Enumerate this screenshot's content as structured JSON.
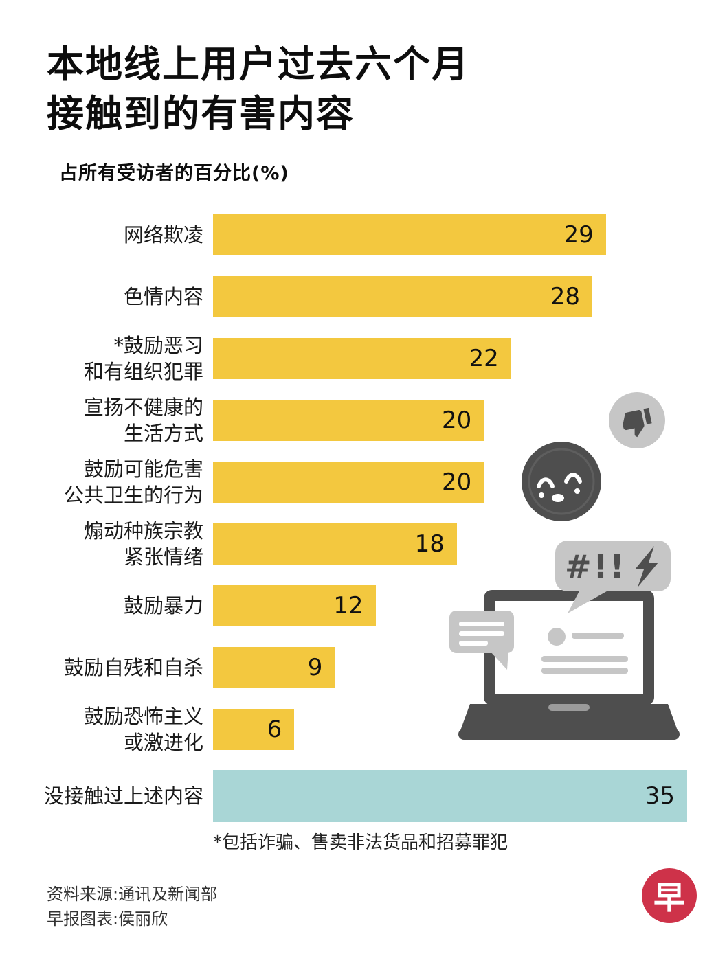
{
  "title": "本地线上用户过去六个月\n接触到的有害内容",
  "subtitle": "占所有受访者的百分比(%)",
  "chart_data": {
    "type": "bar",
    "orientation": "horizontal",
    "title": "本地线上用户过去六个月接触到的有害内容",
    "xlabel": "占所有受访者的百分比(%)",
    "ylabel": "",
    "axis_max": 35,
    "grid": false,
    "legend": false,
    "value_labels_inside_bars": true,
    "bar_color": "#F3C83F",
    "highlight_color": "#A9D6D6",
    "highlight_index": 9,
    "categories": [
      "网络欺凌",
      "色情内容",
      "*鼓励恶习\n和有组织犯罪",
      "宣扬不健康的\n生活方式",
      "鼓励可能危害\n公共卫生的行为",
      "煽动种族宗教\n紧张情绪",
      "鼓励暴力",
      "鼓励自残和自杀",
      "鼓励恐怖主义\n或激进化",
      "没接触过上述内容"
    ],
    "values": [
      29,
      28,
      22,
      20,
      20,
      18,
      12,
      9,
      6,
      35
    ]
  },
  "footnote": "*包括诈骗、售卖非法货品和招募罪犯",
  "source": "资料来源:通讯及新闻部\n早报图表:侯丽欣",
  "logo": {
    "glyph": "早",
    "bg_color": "#CE3249"
  },
  "decorations": {
    "grawlix_text": "#!!",
    "icons": [
      "thumbs-down-icon",
      "annoyed-face-icon",
      "grawlix-speech-bubble",
      "chat-bubble-icon",
      "laptop-icon"
    ],
    "dark_gray": "#4E4E4E",
    "light_gray": "#C6C6C6"
  }
}
